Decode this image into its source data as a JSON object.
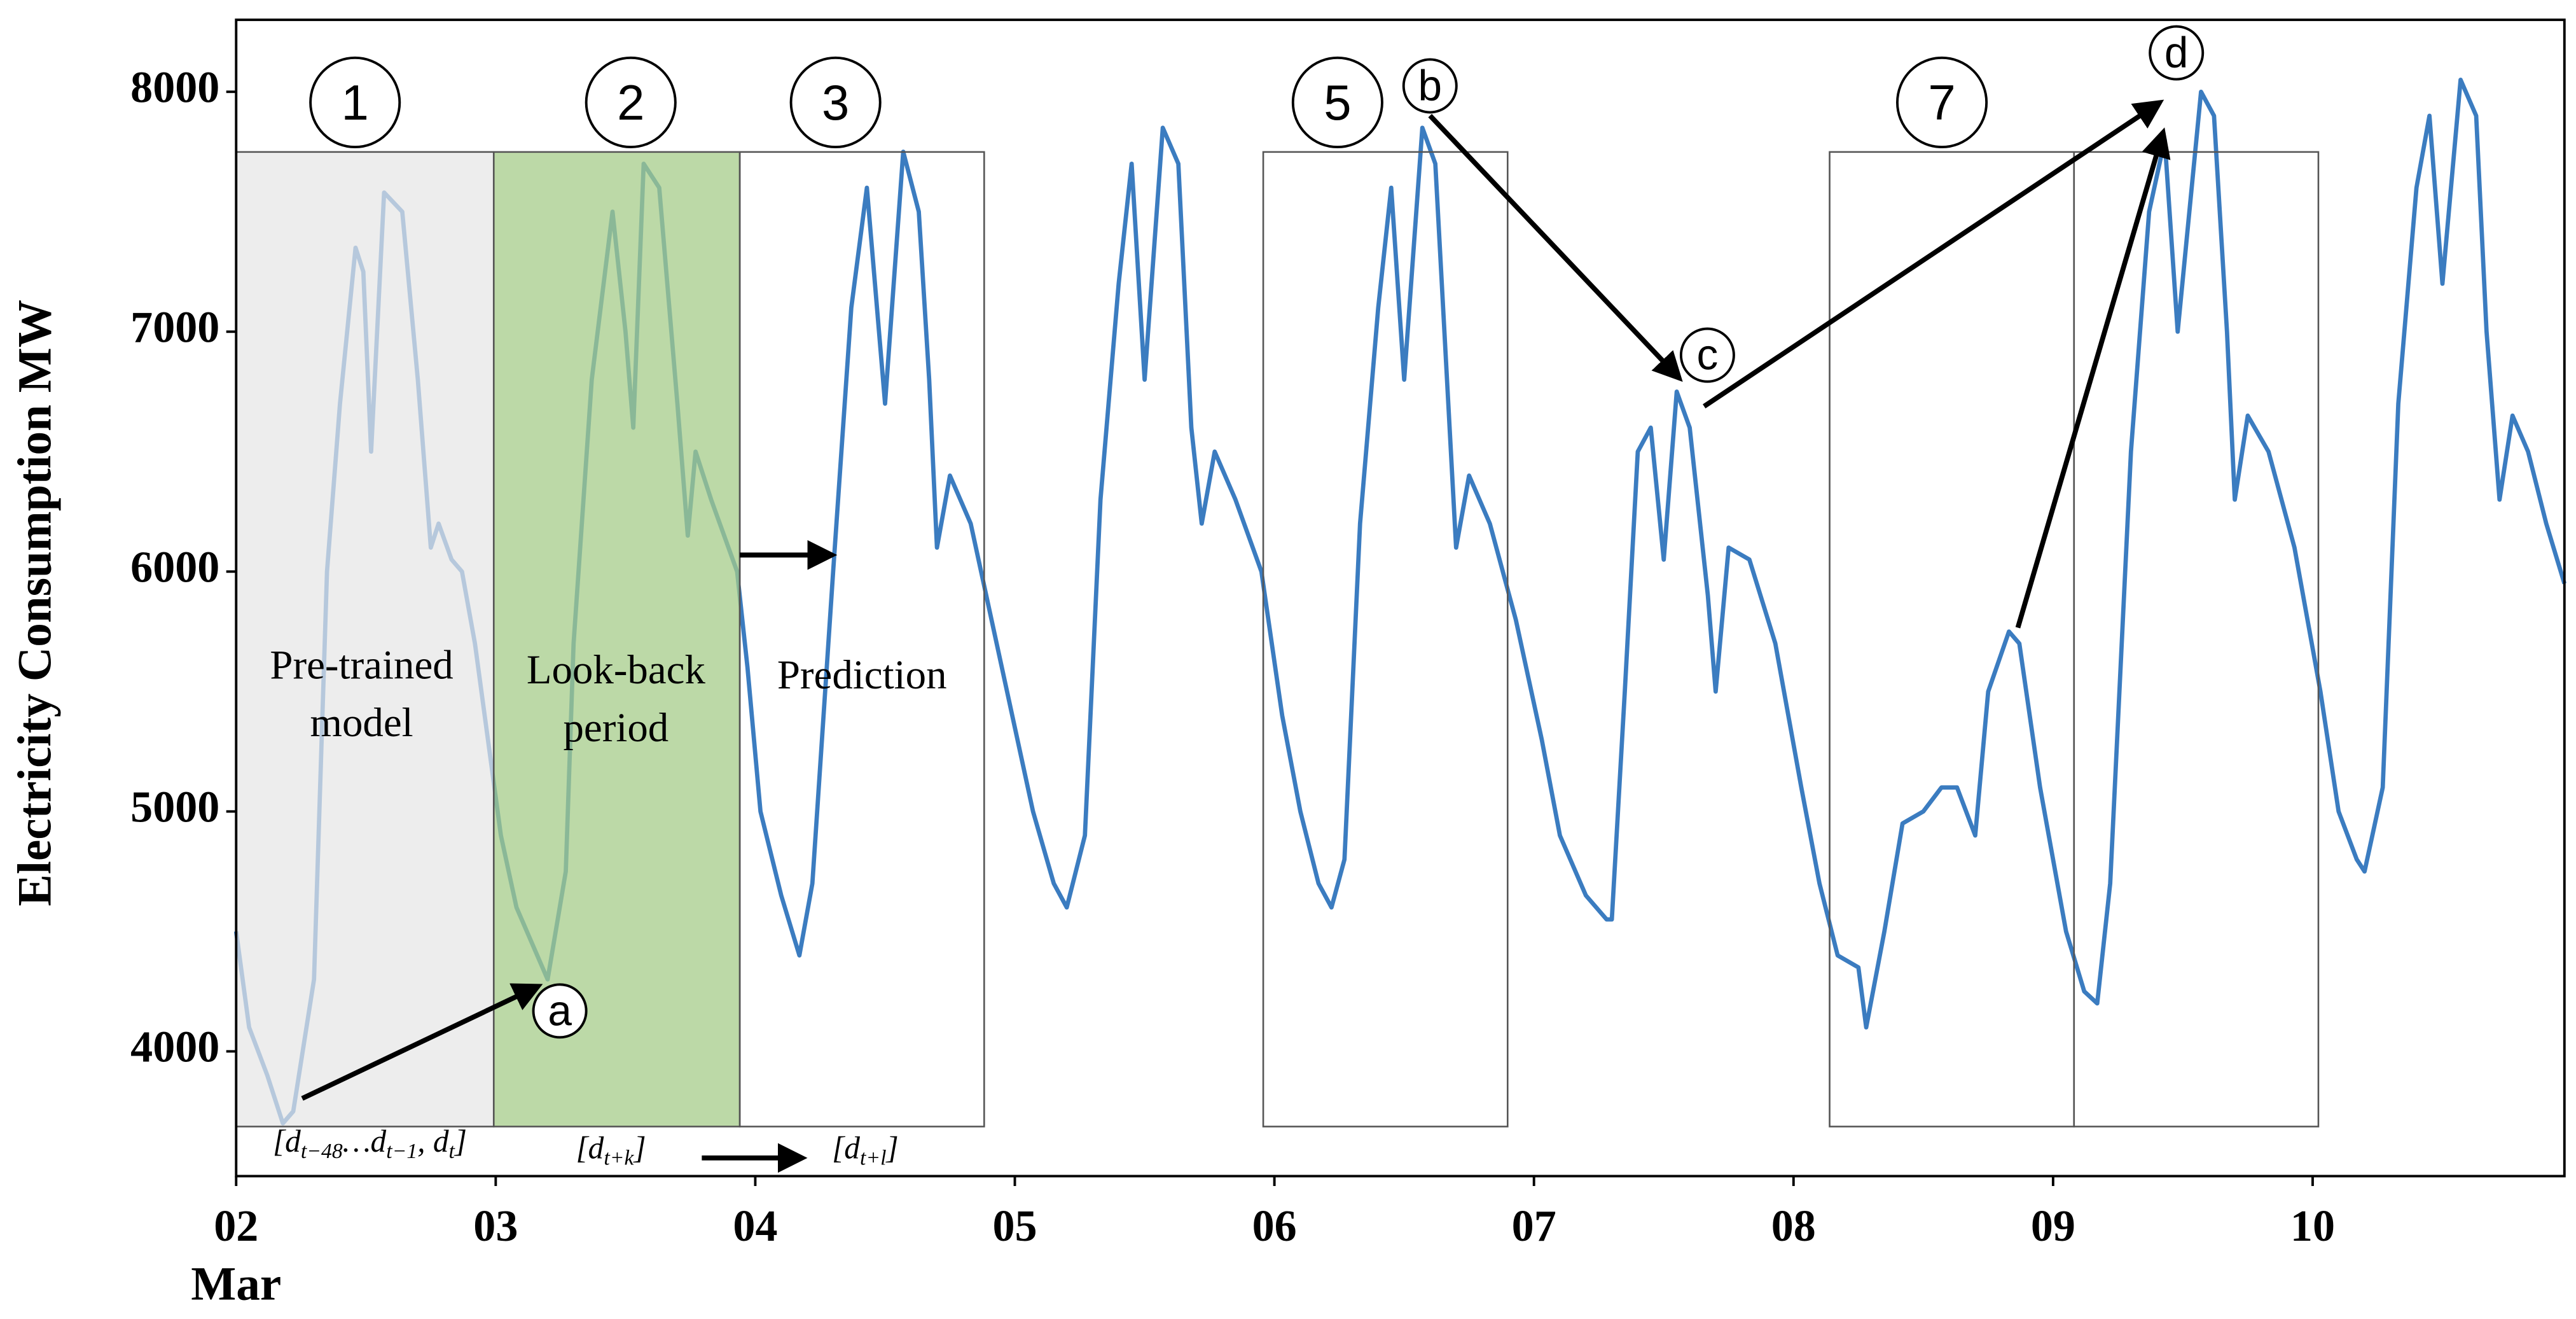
{
  "chart_data": {
    "type": "line",
    "ylabel": "Electricity Consumption MW",
    "xlabel": "Mar",
    "color": "#3b7cc0",
    "xlim": [
      2,
      10.97
    ],
    "ylim": [
      3480,
      8300
    ],
    "xticks": [
      {
        "value": 2,
        "label": "02"
      },
      {
        "value": 3,
        "label": "03"
      },
      {
        "value": 4,
        "label": "04"
      },
      {
        "value": 5,
        "label": "05"
      },
      {
        "value": 6,
        "label": "06"
      },
      {
        "value": 7,
        "label": "07"
      },
      {
        "value": 8,
        "label": "08"
      },
      {
        "value": 9,
        "label": "09"
      },
      10
    ],
    "yticks": [
      4000,
      5000,
      6000,
      7000,
      8000
    ],
    "x": [
      2.0,
      2.05,
      2.12,
      2.18,
      2.22,
      2.3,
      2.35,
      2.4,
      2.46,
      2.49,
      2.52,
      2.57,
      2.64,
      2.7,
      2.75,
      2.78,
      2.83,
      2.87,
      2.92,
      2.97,
      3.02,
      3.08,
      3.2,
      3.27,
      3.3,
      3.37,
      3.45,
      3.5,
      3.53,
      3.57,
      3.63,
      3.7,
      3.74,
      3.77,
      3.83,
      3.93,
      3.97,
      4.02,
      4.1,
      4.17,
      4.22,
      4.3,
      4.37,
      4.43,
      4.5,
      4.57,
      4.63,
      4.67,
      4.7,
      4.75,
      4.83,
      4.97,
      5.07,
      5.15,
      5.2,
      5.27,
      5.33,
      5.4,
      5.45,
      5.5,
      5.57,
      5.63,
      5.68,
      5.72,
      5.77,
      5.85,
      5.95,
      6.03,
      6.1,
      6.17,
      6.22,
      6.27,
      6.33,
      6.4,
      6.45,
      6.5,
      6.57,
      6.62,
      6.67,
      6.7,
      6.75,
      6.83,
      6.93,
      7.03,
      7.1,
      7.2,
      7.28,
      7.3,
      7.35,
      7.4,
      7.45,
      7.5,
      7.55,
      7.6,
      7.67,
      7.7,
      7.75,
      7.83,
      7.93,
      8.03,
      8.1,
      8.17,
      8.25,
      8.28,
      8.35,
      8.42,
      8.5,
      8.57,
      8.63,
      8.7,
      8.75,
      8.83,
      8.87,
      8.95,
      9.05,
      9.12,
      9.17,
      9.22,
      9.3,
      9.37,
      9.43,
      9.48,
      9.57,
      9.62,
      9.67,
      9.7,
      9.75,
      9.83,
      9.93,
      10.03,
      10.1,
      10.17,
      10.2,
      10.27,
      10.33,
      10.4,
      10.45,
      10.5,
      10.57,
      10.63,
      10.67,
      10.72,
      10.77,
      10.83,
      10.9,
      10.97
    ],
    "values": [
      4500,
      4100,
      3900,
      3700,
      3750,
      4300,
      6000,
      6700,
      7350,
      7250,
      6500,
      7580,
      7500,
      6800,
      6100,
      6200,
      6050,
      6000,
      5700,
      5300,
      4900,
      4600,
      4300,
      4750,
      5700,
      6800,
      7500,
      7000,
      6600,
      7700,
      7600,
      6700,
      6150,
      6500,
      6300,
      6000,
      5600,
      5000,
      4650,
      4400,
      4700,
      6000,
      7100,
      7600,
      6700,
      7750,
      7500,
      6800,
      6100,
      6400,
      6200,
      5500,
      5000,
      4700,
      4600,
      4900,
      6300,
      7200,
      7700,
      6800,
      7850,
      7700,
      6600,
      6200,
      6500,
      6300,
      6000,
      5400,
      5000,
      4700,
      4600,
      4800,
      6200,
      7100,
      7600,
      6800,
      7850,
      7700,
      6700,
      6100,
      6400,
      6200,
      5800,
      5300,
      4900,
      4650,
      4550,
      4550,
      5500,
      6500,
      6600,
      6050,
      6750,
      6600,
      5900,
      5500,
      6100,
      6050,
      5700,
      5100,
      4700,
      4400,
      4350,
      4100,
      4500,
      4950,
      5000,
      5100,
      5100,
      4900,
      5500,
      5750,
      5700,
      5100,
      4500,
      4250,
      4200,
      4700,
      6500,
      7500,
      7800,
      7000,
      8000,
      7900,
      7000,
      6300,
      6650,
      6500,
      6100,
      5500,
      5000,
      4800,
      4750,
      5100,
      6700,
      7600,
      7900,
      7200,
      8050,
      7900,
      7000,
      6300,
      6650,
      6500,
      6200,
      5950
    ],
    "annotations": {
      "circles": [
        "1",
        "2",
        "3",
        "5",
        "b",
        "7",
        "c",
        "d",
        "a"
      ],
      "texts": [
        "Pre-trained",
        "model",
        "Look-back",
        "period",
        "Prediction",
        "[d_{t−48}…d_{t−1}, d_t]",
        "[d_{t+k}]",
        "[d_{t+l}]"
      ]
    }
  }
}
